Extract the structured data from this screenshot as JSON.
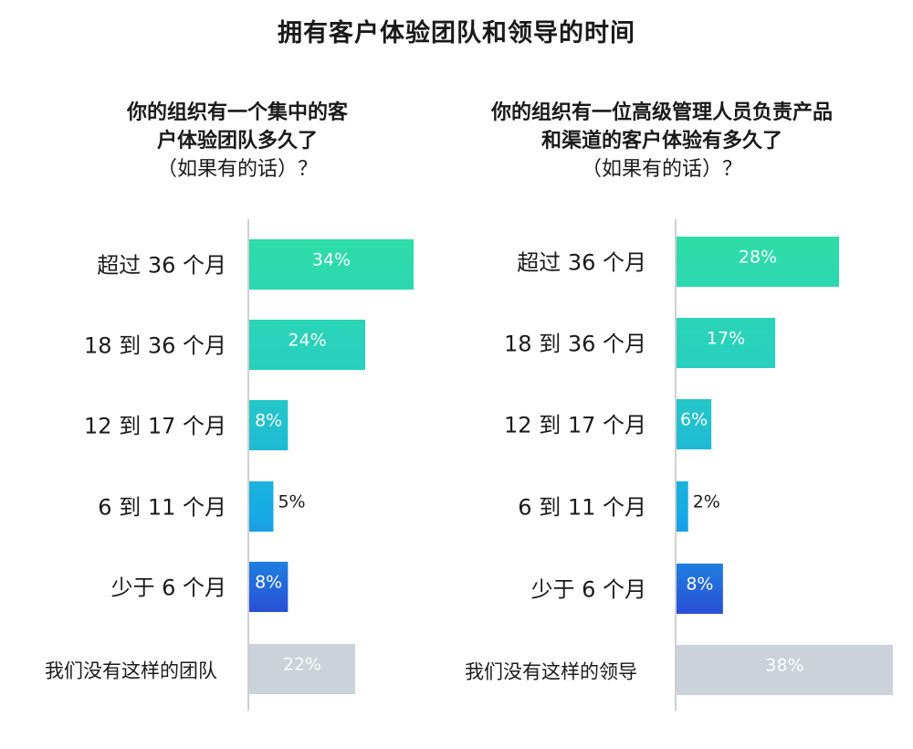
{
  "title": "拥有客户体验团队和领导的时间",
  "colors": {
    "bar_gradient": [
      "#2fdda7",
      "#28cfc0",
      "#16a8e6",
      "#2a4fd6"
    ],
    "none_bar": "#cbd2d9",
    "axis_line": "#cfcfcf"
  },
  "chart_data": [
    {
      "type": "bar",
      "orientation": "horizontal",
      "title": [
        "你的组织有一个集中的客",
        "户体验团队多久了"
      ],
      "subtitle": "（如果有的话）？",
      "categories": [
        "超过 36 个月",
        "18 到 36 个月",
        "12 到 17 个月",
        "6 到 11 个月",
        "少于 6 个月",
        "我们没有这样的团队"
      ],
      "values": [
        34,
        24,
        8,
        5,
        8,
        22
      ],
      "labels": [
        "34%",
        "24%",
        "8%",
        "5%",
        "8%",
        "22%"
      ],
      "xlim": [
        0,
        38
      ],
      "grid": false
    },
    {
      "type": "bar",
      "orientation": "horizontal",
      "title": [
        "你的组织有一位高级管理人员负责产品",
        "和渠道的客户体验有多久了"
      ],
      "subtitle": "（如果有的话）？",
      "categories": [
        "超过 36 个月",
        "18 到 36 个月",
        "12 到 17 个月",
        "6 到 11 个月",
        "少于 6 个月",
        "我们没有这样的领导"
      ],
      "values": [
        28,
        17,
        6,
        2,
        8,
        38
      ],
      "labels": [
        "28%",
        "17%",
        "6%",
        "2%",
        "8%",
        "38%"
      ],
      "xlim": [
        0,
        38
      ],
      "grid": false
    }
  ]
}
